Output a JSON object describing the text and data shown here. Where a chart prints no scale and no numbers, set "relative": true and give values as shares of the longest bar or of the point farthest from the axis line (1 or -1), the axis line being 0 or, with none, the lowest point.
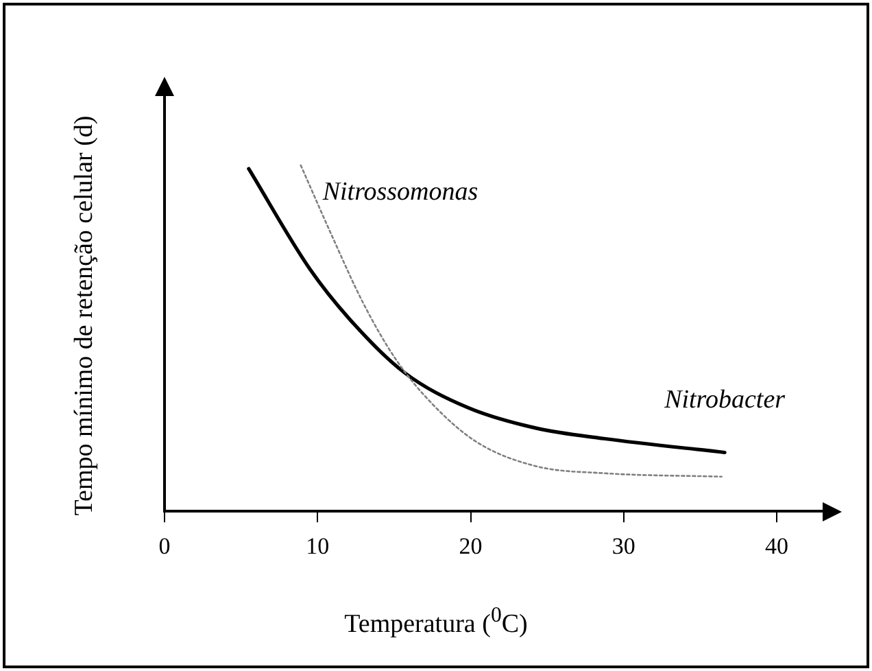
{
  "chart_data": {
    "type": "line",
    "relative": true,
    "xlabel": "Temperatura ($^{0}$C)",
    "ylabel": "Tempo mínimo de retenção celular (d)",
    "xlim": [
      0,
      43
    ],
    "xticks": [
      0,
      10,
      20,
      30,
      40
    ],
    "grid": false,
    "legend": false,
    "marker": "none",
    "series": [
      {
        "name": "Nitrossomonas",
        "color": "#808080",
        "line_style": "dotted",
        "x": [
          8.9,
          11.0,
          13.0,
          15.1,
          17.5,
          20.4,
          24.3,
          28.7,
          36.4
        ],
        "values": [
          1.0,
          0.79,
          0.6,
          0.44,
          0.31,
          0.2,
          0.13,
          0.11,
          0.1
        ]
      },
      {
        "name": "Nitrobacter",
        "color": "#000000",
        "line_style": "solid",
        "x": [
          5.5,
          9.5,
          12.4,
          15.7,
          19.8,
          24.3,
          28.7,
          36.6
        ],
        "values": [
          0.99,
          0.7,
          0.54,
          0.4,
          0.3,
          0.24,
          0.21,
          0.17
        ]
      }
    ]
  }
}
